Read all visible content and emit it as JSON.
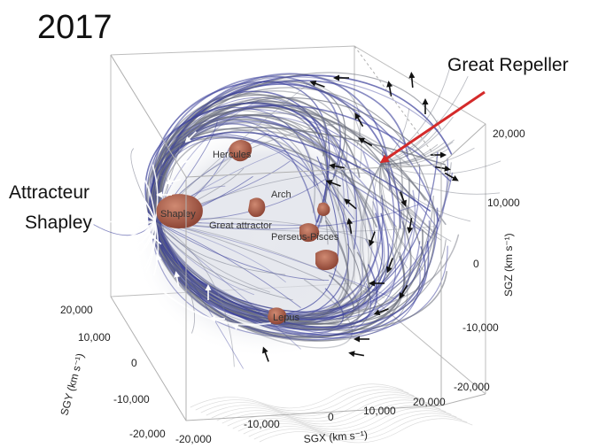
{
  "title": "2017",
  "annotations": {
    "great_repeller": "Great Repeller",
    "attractor_line1": "Attracteur",
    "attractor_line2": "Shapley"
  },
  "structures": {
    "hercules": "Hercules",
    "shapley": "Shapley",
    "arch": "Arch",
    "great_attractor": "Great attractor",
    "perseus_pisces": "Perseus-Pisces",
    "lepus": "Lepus"
  },
  "axes": {
    "sgx_label": "SGX (km s⁻¹)",
    "sgy_label": "SGY (km s⁻¹)",
    "sgz_label": "SGZ (km s⁻¹)",
    "sgx_ticks": [
      "-20,000",
      "-10,000",
      "0",
      "10,000",
      "20,000"
    ],
    "sgy_ticks": [
      "20,000",
      "10,000",
      "0",
      "-10,000",
      "-20,000"
    ],
    "sgz_ticks": [
      "20,000",
      "10,000",
      "0",
      "-10,000",
      "-20,000"
    ]
  },
  "colors": {
    "flow_lines": "#3a3f9a",
    "repeller_arrow": "#d42a2a",
    "structure_blobs": "#a65a4a",
    "box": "#b8b8b8"
  }
}
